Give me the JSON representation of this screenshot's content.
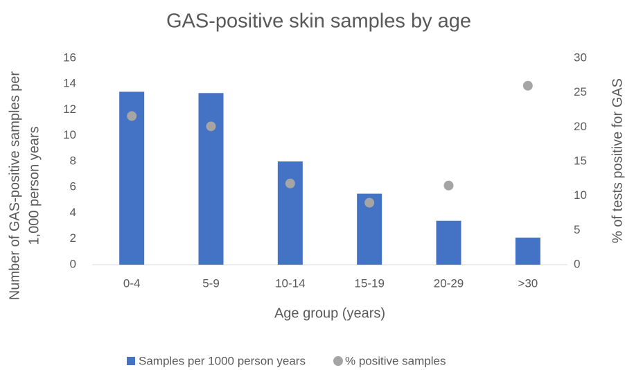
{
  "chart_data": {
    "type": "bar",
    "title": "GAS-positive skin samples by age",
    "xlabel": "Age group (years)",
    "ylabel": [
      "Number of GAS-positive samples per",
      "1,000 person years"
    ],
    "y2label": "% of tests positive for GAS",
    "categories": [
      "0-4",
      "5-9",
      "10-14",
      "15-19",
      "20-29",
      ">30"
    ],
    "series": [
      {
        "name": "Samples per 1000 person years",
        "type": "bar",
        "color": "#4472c4",
        "values": [
          13.4,
          13.3,
          8.0,
          5.5,
          3.4,
          2.1
        ]
      },
      {
        "name": "% positive samples",
        "type": "scatter",
        "axis": "y2",
        "color": "#a5a5a5",
        "values": [
          21.6,
          20.1,
          11.8,
          9.0,
          11.5,
          26.0
        ]
      }
    ],
    "ylim": [
      0,
      16
    ],
    "yticks": [
      0,
      2,
      4,
      6,
      8,
      10,
      12,
      14,
      16
    ],
    "y2lim": [
      0,
      30
    ],
    "y2ticks": [
      0,
      5,
      10,
      15,
      20,
      25,
      30
    ],
    "grid": false,
    "legend": "bottom"
  }
}
